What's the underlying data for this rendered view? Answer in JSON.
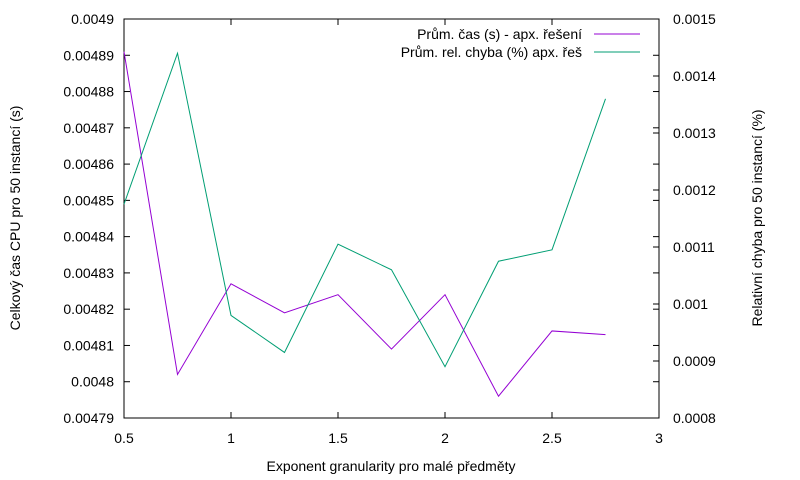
{
  "chart_data": {
    "type": "line",
    "title": "",
    "xlabel": "Exponent granularity pro malé předměty",
    "ylabel": "Celkový čas CPU pro 50 instancí (s)",
    "y2label": "Relativní chyba pro 50 instancí (%)",
    "xlim": [
      0.5,
      3
    ],
    "ylim": [
      0.00479,
      0.0049
    ],
    "y2lim": [
      0.0008,
      0.0015
    ],
    "x_ticks": [
      "0.5",
      "1",
      "1.5",
      "2",
      "2.5",
      "3"
    ],
    "y_ticks": [
      "0.00479",
      "0.0048",
      "0.00481",
      "0.00482",
      "0.00483",
      "0.00484",
      "0.00485",
      "0.00486",
      "0.00487",
      "0.00488",
      "0.00489",
      "0.0049"
    ],
    "y2_ticks": [
      "0.0008",
      "0.0009",
      "0.001",
      "0.0011",
      "0.0012",
      "0.0013",
      "0.0014",
      "0.0015"
    ],
    "grid": false,
    "legend_position": "top-right",
    "x": [
      0.5,
      0.75,
      1.0,
      1.25,
      1.5,
      1.75,
      2.0,
      2.25,
      2.5,
      2.75
    ],
    "series": [
      {
        "name": "Prům. čas (s) - apx. řešení",
        "axis": "left",
        "color": "#9400d3",
        "values": [
          0.004891,
          0.004802,
          0.004827,
          0.004819,
          0.004824,
          0.004809,
          0.004824,
          0.004796,
          0.004814,
          0.004813
        ]
      },
      {
        "name": "Prům. rel. chyba (%) apx. řeš",
        "axis": "right",
        "color": "#009e73",
        "values": [
          0.001175,
          0.00144,
          0.00098,
          0.000915,
          0.001105,
          0.00106,
          0.00089,
          0.001075,
          0.001095,
          0.00136
        ]
      }
    ]
  }
}
